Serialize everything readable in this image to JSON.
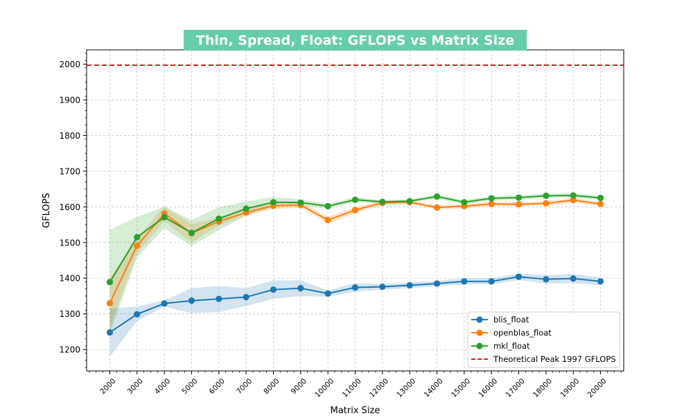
{
  "chart_data": {
    "type": "line",
    "title": "Thin, Spread, Float: GFLOPS vs Matrix Size",
    "title_bg_color": "#66cdaa",
    "xlabel": "Matrix Size",
    "ylabel": "GFLOPS",
    "x": [
      2000,
      3000,
      4000,
      5000,
      6000,
      7000,
      8000,
      9000,
      10000,
      11000,
      12000,
      13000,
      14000,
      15000,
      16000,
      17000,
      18000,
      19000,
      20000
    ],
    "x_tick_labels": [
      "2000",
      "3000",
      "4000",
      "5000",
      "6000",
      "7000",
      "8000",
      "9000",
      "10000",
      "11000",
      "12000",
      "13000",
      "14000",
      "15000",
      "16000",
      "17000",
      "18000",
      "19000",
      "20000"
    ],
    "xlim": [
      1150,
      20850
    ],
    "ylim": [
      1140,
      2040
    ],
    "y_ticks": [
      1200,
      1300,
      1400,
      1500,
      1600,
      1700,
      1800,
      1900,
      2000
    ],
    "y_tick_labels": [
      "1200",
      "1300",
      "1400",
      "1500",
      "1600",
      "1700",
      "1800",
      "1900",
      "2000"
    ],
    "grid": true,
    "legend_position": "lower-right",
    "series": [
      {
        "name": "blis_float",
        "color": "#1f77b4",
        "values": [
          1248,
          1299,
          1329,
          1337,
          1342,
          1347,
          1368,
          1372,
          1357,
          1374,
          1376,
          1380,
          1385,
          1391,
          1391,
          1404,
          1397,
          1399,
          1391
        ],
        "lower": [
          1180,
          1280,
          1320,
          1302,
          1305,
          1322,
          1342,
          1350,
          1348,
          1362,
          1368,
          1372,
          1378,
          1382,
          1382,
          1395,
          1385,
          1386,
          1380
        ],
        "upper": [
          1315,
          1320,
          1338,
          1372,
          1378,
          1372,
          1394,
          1394,
          1366,
          1386,
          1384,
          1388,
          1392,
          1400,
          1400,
          1413,
          1409,
          1412,
          1402
        ]
      },
      {
        "name": "openblas_float",
        "color": "#ff7f0e",
        "values": [
          1330,
          1491,
          1581,
          1526,
          1559,
          1584,
          1603,
          1605,
          1563,
          1591,
          1611,
          1613,
          1598,
          1602,
          1608,
          1607,
          1610,
          1619,
          1608
        ],
        "lower": [
          1260,
          1470,
          1560,
          1500,
          1548,
          1575,
          1594,
          1597,
          1553,
          1582,
          1604,
          1607,
          1592,
          1596,
          1602,
          1601,
          1604,
          1612,
          1602
        ],
        "upper": [
          1400,
          1512,
          1602,
          1552,
          1570,
          1593,
          1612,
          1613,
          1573,
          1600,
          1618,
          1619,
          1604,
          1608,
          1614,
          1613,
          1616,
          1626,
          1614
        ]
      },
      {
        "name": "mkl_float",
        "color": "#2ca02c",
        "values": [
          1389,
          1515,
          1571,
          1527,
          1567,
          1595,
          1613,
          1612,
          1602,
          1620,
          1614,
          1616,
          1629,
          1613,
          1624,
          1626,
          1631,
          1632,
          1625
        ],
        "lower": [
          1245,
          1458,
          1540,
          1490,
          1535,
          1575,
          1600,
          1603,
          1595,
          1613,
          1609,
          1611,
          1623,
          1607,
          1618,
          1620,
          1625,
          1626,
          1619
        ],
        "upper": [
          1535,
          1572,
          1600,
          1563,
          1599,
          1615,
          1628,
          1621,
          1609,
          1627,
          1619,
          1621,
          1635,
          1619,
          1630,
          1632,
          1637,
          1638,
          1631
        ]
      }
    ],
    "reference_lines": [
      {
        "name": "Theoretical Peak 1997 GFLOPS",
        "value": 1997,
        "color": "#e41a1c",
        "style": "dashed"
      }
    ]
  }
}
